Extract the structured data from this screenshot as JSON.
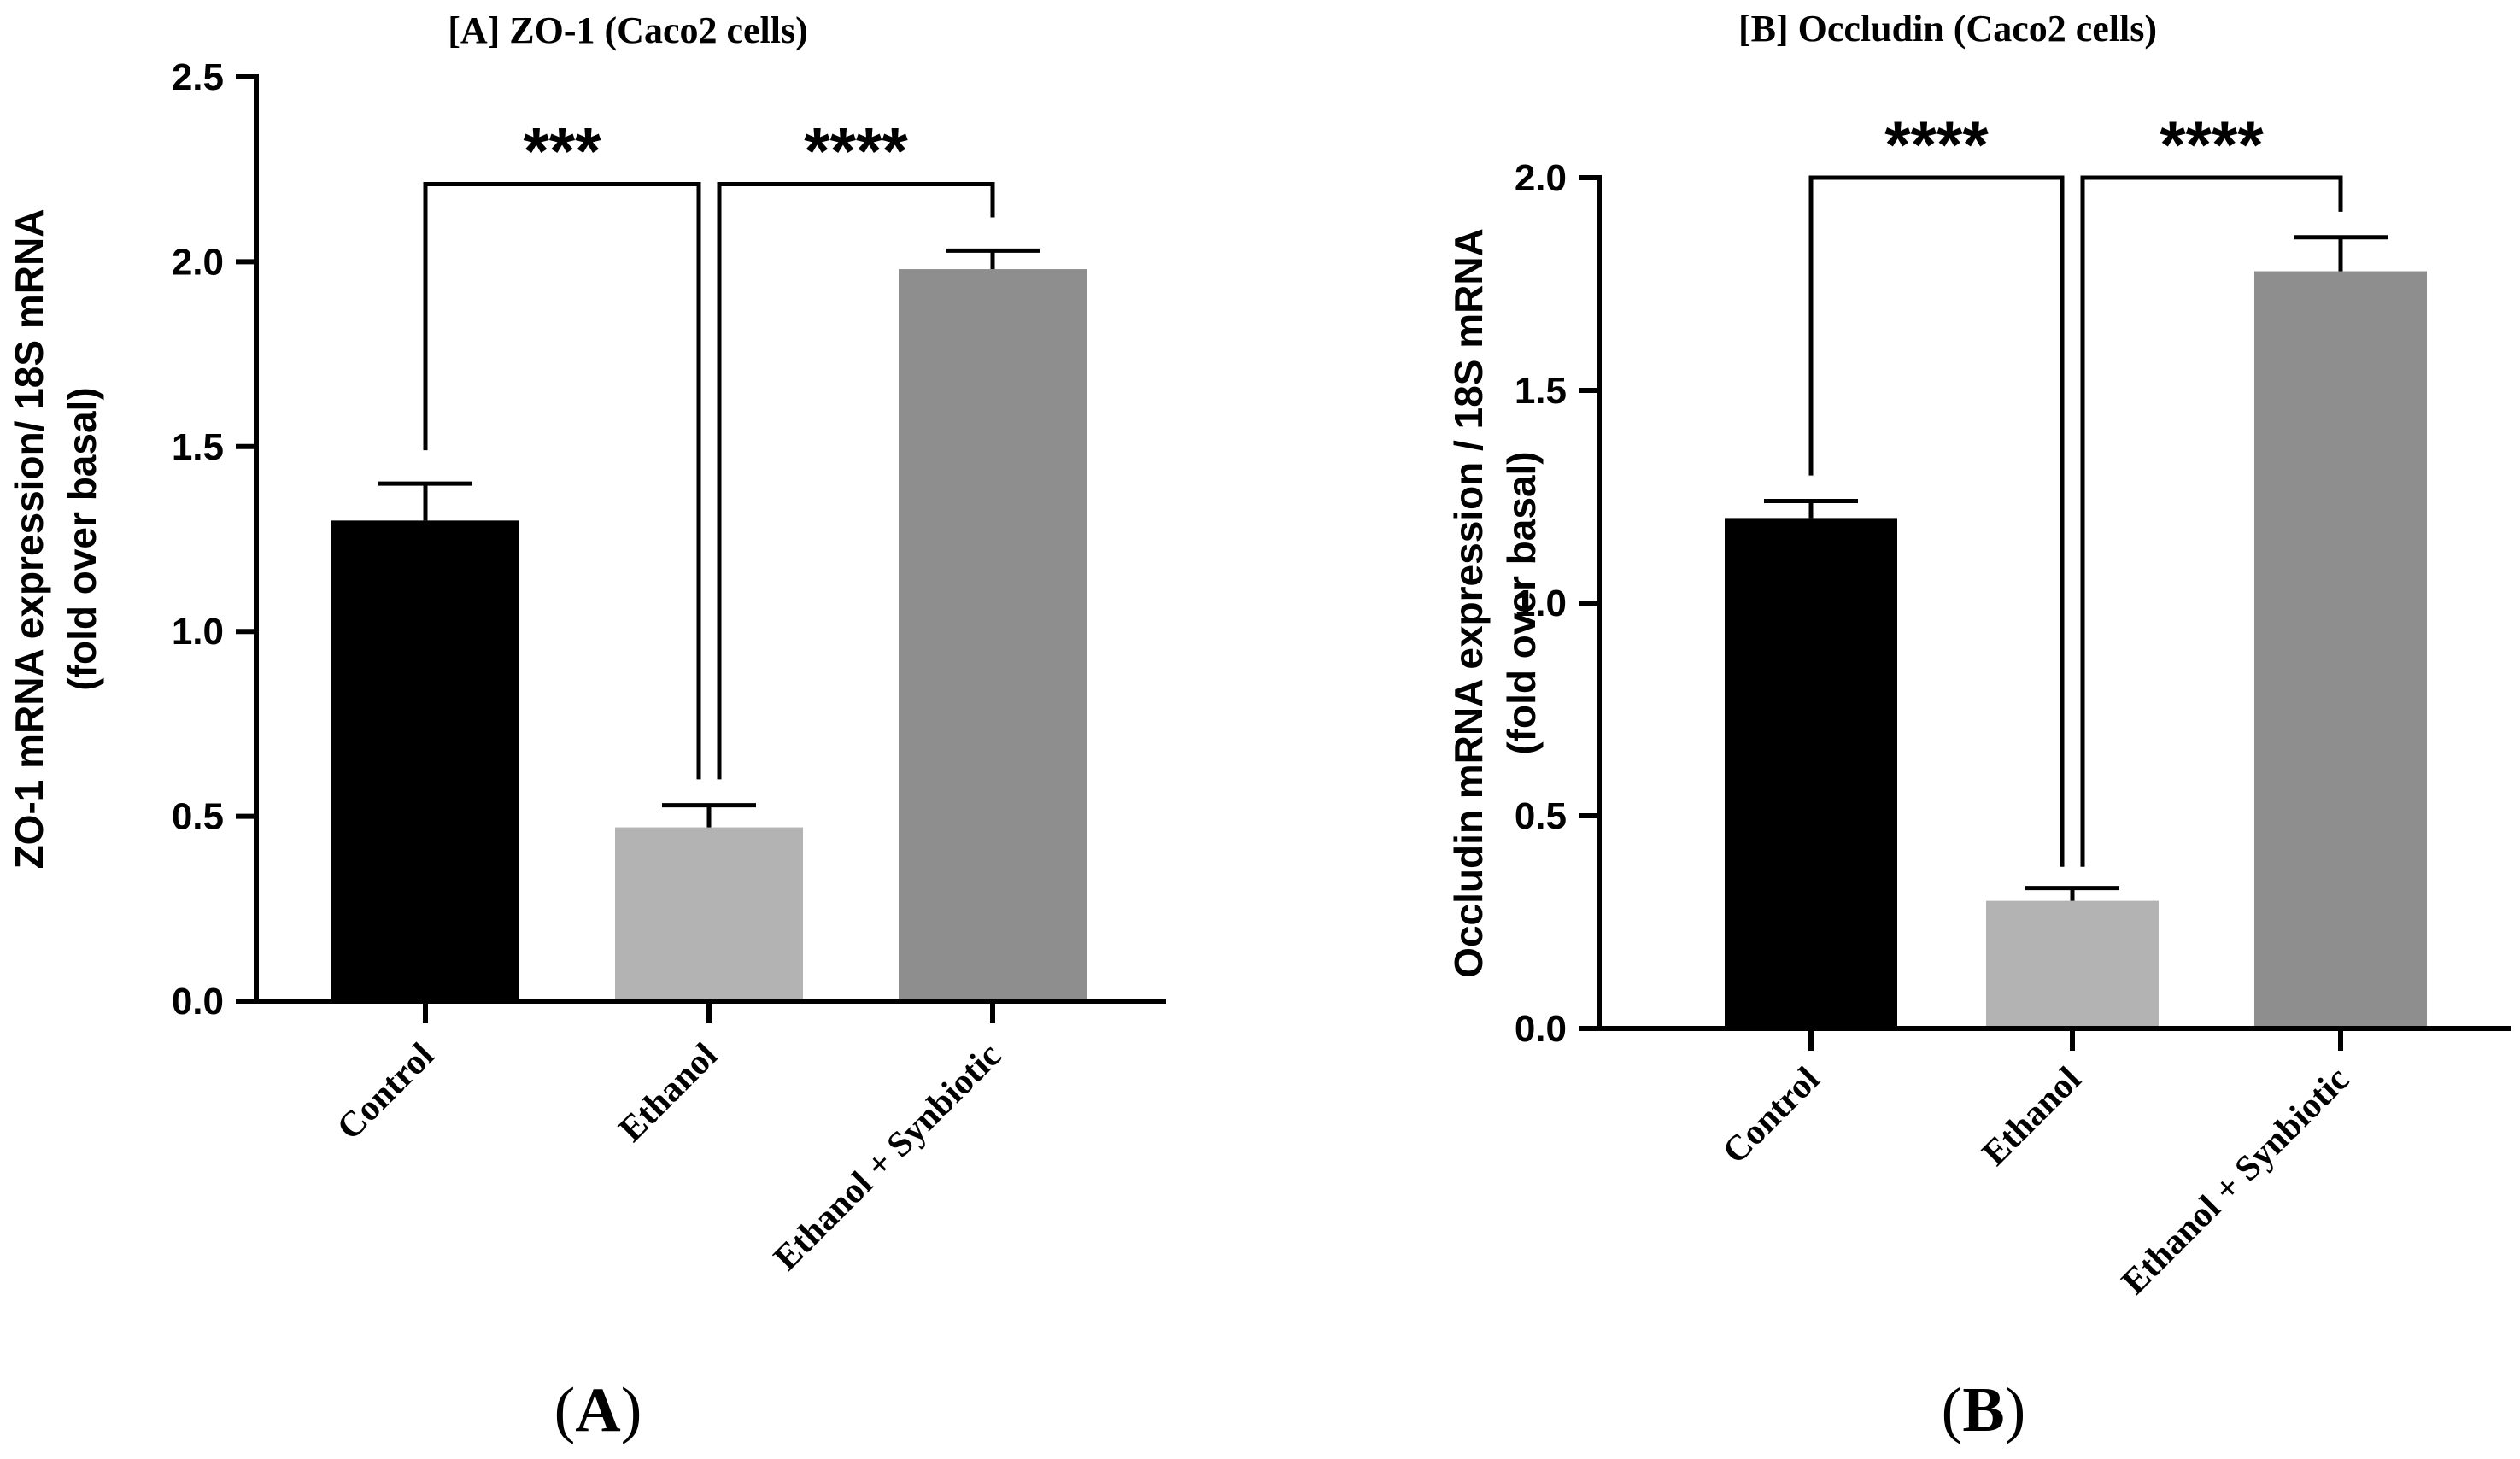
{
  "chart_data": [
    {
      "type": "bar",
      "panel": "A",
      "title": "[A] ZO-1 (Caco2 cells)",
      "ylabel_line1": "ZO-1 mRNA expression/ 18S mRNA",
      "ylabel_line2": "(fold over basal)",
      "xlabel": "",
      "categories": [
        "Control",
        "Ethanol",
        "Ethanol + Synbiotic"
      ],
      "values": [
        1.3,
        0.47,
        1.98
      ],
      "errors": [
        0.1,
        0.06,
        0.05
      ],
      "colors": [
        "#000000",
        "#b3b3b3",
        "#8e8e8e"
      ],
      "ylim": [
        0,
        2.5
      ],
      "yticks": [
        0.0,
        0.5,
        1.0,
        1.5,
        2.0,
        2.5
      ],
      "ytick_labels": [
        "0.0",
        "0.5",
        "1.0",
        "1.5",
        "2.0",
        "2.5"
      ],
      "grid": false,
      "significance": [
        {
          "from": 0,
          "to": 1,
          "label": "***",
          "y": 2.21,
          "start_y": 1.49,
          "end_y": 0.6
        },
        {
          "from": 1,
          "to": 2,
          "label": "****",
          "y": 2.21,
          "start_y": 0.6,
          "end_y": 2.12
        }
      ],
      "panel_label": "A"
    },
    {
      "type": "bar",
      "panel": "B",
      "title": "[B] Occludin (Caco2 cells)",
      "ylabel_line1": "Occludin mRNA expression / 18S mRNA",
      "ylabel_line2": "(fold over basal)",
      "xlabel": "",
      "categories": [
        "Control",
        "Ethanol",
        "Ethanol + Synbiotic"
      ],
      "values": [
        1.2,
        0.3,
        1.78
      ],
      "errors": [
        0.04,
        0.03,
        0.08
      ],
      "colors": [
        "#000000",
        "#b3b3b3",
        "#8e8e8e"
      ],
      "ylim": [
        0,
        2.0
      ],
      "yticks": [
        0.0,
        0.5,
        1.0,
        1.5,
        2.0
      ],
      "ytick_labels": [
        "0.0",
        "0.5",
        "1.0",
        "1.5",
        "2.0"
      ],
      "grid": false,
      "significance": [
        {
          "from": 0,
          "to": 1,
          "label": "****",
          "y": 2.0,
          "start_y": 1.3,
          "end_y": 0.38
        },
        {
          "from": 1,
          "to": 2,
          "label": "****",
          "y": 2.0,
          "start_y": 0.38,
          "end_y": 1.92
        }
      ],
      "panel_label": "B"
    }
  ]
}
